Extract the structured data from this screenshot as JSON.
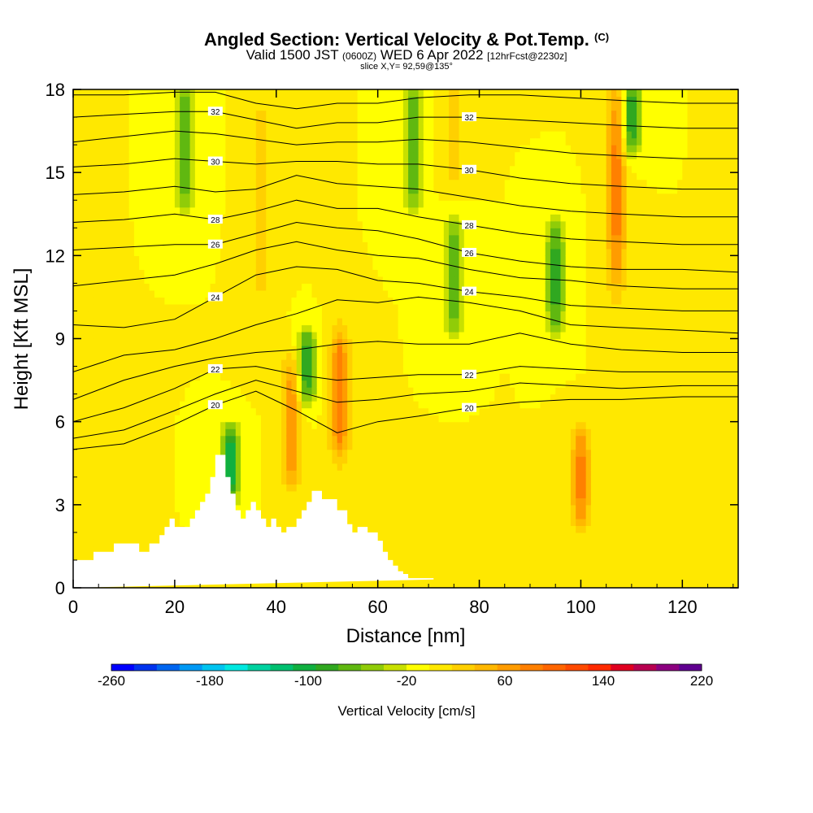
{
  "header": {
    "title_main": "Angled Section: Vertical Velocity & Pot.Temp.",
    "title_tag": "(C)",
    "valid_prefix": "Valid 1500 JST",
    "valid_utc": "(0600Z)",
    "valid_date": "WED 6 Apr 2022",
    "forecast": "[12hrFcst@2230z]",
    "slice": "slice X,Y= 92,59@135°"
  },
  "chart_data": {
    "type": "heatmap",
    "xlabel": "Distance [nm]",
    "ylabel": "Height [Kft MSL]",
    "xlim": [
      0,
      131
    ],
    "ylim": [
      0,
      18
    ],
    "x_ticks": [
      0,
      20,
      40,
      60,
      80,
      100,
      120
    ],
    "y_ticks": [
      0,
      3,
      6,
      9,
      12,
      15,
      18
    ],
    "colorbar": {
      "title": "Vertical Velocity [cm/s]",
      "min": -260,
      "max": 220,
      "step": 20,
      "tick_labels": [
        "-260",
        "-180",
        "-100",
        "-20",
        "60",
        "140",
        "220"
      ],
      "colors": [
        "#0000ff",
        "#0033ee",
        "#0066f0",
        "#0099f5",
        "#00c4f0",
        "#00e8e0",
        "#00d2a0",
        "#00c070",
        "#10b040",
        "#30a820",
        "#60b810",
        "#90cc08",
        "#c8e000",
        "#ffff00",
        "#ffe800",
        "#ffd000",
        "#ffb800",
        "#ff9c00",
        "#ff8000",
        "#ff6600",
        "#ff4a00",
        "#ff2a00",
        "#e00020",
        "#b80050",
        "#8c0080",
        "#600090"
      ]
    },
    "background_value": 20,
    "updraft_features": [
      {
        "x": 37,
        "y_range": [
          10,
          18
        ],
        "value": 50
      },
      {
        "x": 43,
        "y_range": [
          4,
          8
        ],
        "value": 100
      },
      {
        "x": 52.5,
        "y_range": [
          5,
          9
        ],
        "value": 120
      },
      {
        "x": 75,
        "y_range": [
          15,
          18
        ],
        "value": 60
      },
      {
        "x": 100,
        "y_range": [
          2.5,
          5.5
        ],
        "value": 110
      },
      {
        "x": 107,
        "y_range": [
          11,
          18
        ],
        "value": 110
      }
    ],
    "downdraft_features": [
      {
        "x": 22,
        "y_range": [
          14,
          18
        ],
        "value": -60
      },
      {
        "x": 31,
        "y_range": [
          3.5,
          5.5
        ],
        "value": -100
      },
      {
        "x": 46,
        "y_range": [
          7,
          9
        ],
        "value": -80
      },
      {
        "x": 67,
        "y_range": [
          14,
          18
        ],
        "value": -60
      },
      {
        "x": 75,
        "y_range": [
          9.5,
          13
        ],
        "value": -60
      },
      {
        "x": 95,
        "y_range": [
          9.5,
          13
        ],
        "value": -70
      },
      {
        "x": 110,
        "y_range": [
          16,
          18
        ],
        "value": -80
      }
    ],
    "terrain": {
      "x": [
        0,
        4,
        4,
        8,
        8,
        13,
        13,
        15,
        15,
        17,
        17,
        18,
        18,
        19,
        19,
        20,
        20,
        23,
        23,
        24,
        24,
        25,
        25,
        26,
        26,
        27,
        27,
        28,
        28,
        30,
        30,
        31,
        31,
        32,
        32,
        33,
        33,
        34,
        34,
        35,
        35,
        36,
        36,
        37,
        37,
        38,
        38,
        39,
        39,
        40,
        40,
        41,
        41,
        42,
        42,
        44,
        44,
        45,
        45,
        46,
        46,
        47,
        47,
        49,
        49,
        52,
        52,
        54,
        54,
        55,
        55,
        56,
        56,
        58,
        58,
        60,
        60,
        61,
        61,
        62,
        62,
        63,
        63,
        64,
        64,
        65,
        65,
        66,
        66,
        68,
        68,
        71,
        71,
        131
      ],
      "kft": [
        1.0,
        1.0,
        1.3,
        1.3,
        1.6,
        1.6,
        1.3,
        1.3,
        1.6,
        1.6,
        1.9,
        1.9,
        2.2,
        2.2,
        2.5,
        2.5,
        2.2,
        2.2,
        2.5,
        2.5,
        2.8,
        2.8,
        3.1,
        3.1,
        3.4,
        3.4,
        4.0,
        4.0,
        4.8,
        4.8,
        4.0,
        4.0,
        3.4,
        3.4,
        2.8,
        2.8,
        2.5,
        2.5,
        2.8,
        2.8,
        3.1,
        3.1,
        2.8,
        2.8,
        2.5,
        2.5,
        2.2,
        2.2,
        2.5,
        2.5,
        2.2,
        2.2,
        2.0,
        2.0,
        2.2,
        2.2,
        2.5,
        2.5,
        2.8,
        2.8,
        3.1,
        3.1,
        3.5,
        3.5,
        3.2,
        3.2,
        2.8,
        2.8,
        2.3,
        2.3,
        2.0,
        2.0,
        2.2,
        2.2,
        2.0,
        2.0,
        1.7,
        1.7,
        1.3,
        1.3,
        1.0,
        1.0,
        0.8,
        0.8,
        0.6,
        0.6,
        0.5,
        0.5,
        0.35,
        0.35,
        0.35,
        0.35,
        0.3
      ]
    },
    "pot_temp_contours": {
      "labels": [
        "20",
        "22",
        "24",
        "26",
        "28",
        "30",
        "32"
      ],
      "lines": [
        {
          "kft": [
            5.0,
            5.2,
            5.9,
            6.6,
            7.1,
            6.4,
            5.6,
            6.0,
            6.2,
            6.5,
            6.7,
            6.8,
            6.8,
            6.9,
            6.9
          ],
          "label": "20"
        },
        {
          "kft": [
            5.4,
            5.7,
            6.4,
            7.0,
            7.5,
            7.1,
            6.7,
            6.8,
            7.0,
            7.1,
            7.4,
            7.3,
            7.2,
            7.3,
            7.3
          ]
        },
        {
          "kft": [
            6.0,
            6.5,
            7.2,
            7.9,
            8.0,
            7.7,
            7.5,
            7.6,
            7.7,
            7.7,
            8.0,
            7.9,
            7.8,
            7.8,
            7.8
          ],
          "label": "22"
        },
        {
          "kft": [
            6.8,
            7.5,
            8.0,
            8.3,
            8.5,
            8.6,
            8.8,
            8.9,
            8.8,
            8.8,
            9.2,
            8.8,
            8.6,
            8.5,
            8.5
          ]
        },
        {
          "kft": [
            7.8,
            8.4,
            8.6,
            9.0,
            9.5,
            9.9,
            10.4,
            10.3,
            10.5,
            10.3,
            10.0,
            9.5,
            9.4,
            9.3,
            9.2
          ]
        },
        {
          "kft": [
            9.5,
            9.4,
            9.7,
            10.5,
            11.3,
            11.6,
            11.5,
            11.1,
            11.0,
            10.7,
            10.5,
            10.2,
            10.1,
            10.0,
            10.0
          ],
          "label": "24"
        },
        {
          "kft": [
            10.9,
            11.1,
            11.3,
            11.7,
            12.2,
            12.5,
            12.2,
            12.0,
            11.9,
            11.5,
            11.2,
            11.1,
            10.9,
            10.8,
            10.8
          ]
        },
        {
          "kft": [
            12.2,
            12.3,
            12.4,
            12.4,
            12.8,
            13.2,
            13.0,
            12.9,
            12.6,
            12.1,
            11.8,
            11.6,
            11.5,
            11.5,
            11.4
          ],
          "label": "26"
        },
        {
          "kft": [
            13.2,
            13.3,
            13.5,
            13.3,
            13.6,
            14.0,
            13.7,
            13.7,
            13.4,
            13.1,
            12.8,
            12.6,
            12.5,
            12.4,
            12.4
          ],
          "label": "28"
        },
        {
          "kft": [
            14.2,
            14.3,
            14.5,
            14.3,
            14.4,
            14.9,
            14.6,
            14.5,
            14.4,
            14.1,
            13.8,
            13.6,
            13.5,
            13.4,
            13.4
          ]
        },
        {
          "kft": [
            15.2,
            15.3,
            15.5,
            15.4,
            15.3,
            15.4,
            15.4,
            15.3,
            15.3,
            15.1,
            14.8,
            14.6,
            14.5,
            14.4,
            14.4
          ],
          "label": "30"
        },
        {
          "kft": [
            16.1,
            16.3,
            16.5,
            16.4,
            16.2,
            16.0,
            16.1,
            16.1,
            16.2,
            16.1,
            15.9,
            15.7,
            15.6,
            15.5,
            15.5
          ]
        },
        {
          "kft": [
            17.0,
            17.1,
            17.2,
            17.2,
            16.9,
            16.6,
            16.8,
            16.8,
            17.0,
            17.0,
            16.9,
            16.8,
            16.7,
            16.6,
            16.6
          ],
          "label": "32"
        },
        {
          "kft": [
            17.8,
            17.8,
            17.9,
            17.9,
            17.5,
            17.3,
            17.5,
            17.5,
            17.7,
            17.8,
            17.8,
            17.7,
            17.6,
            17.5,
            17.5
          ]
        }
      ],
      "x": [
        0,
        10,
        20,
        28,
        36,
        44,
        52,
        60,
        68,
        78,
        88,
        98,
        108,
        120,
        131
      ]
    }
  }
}
